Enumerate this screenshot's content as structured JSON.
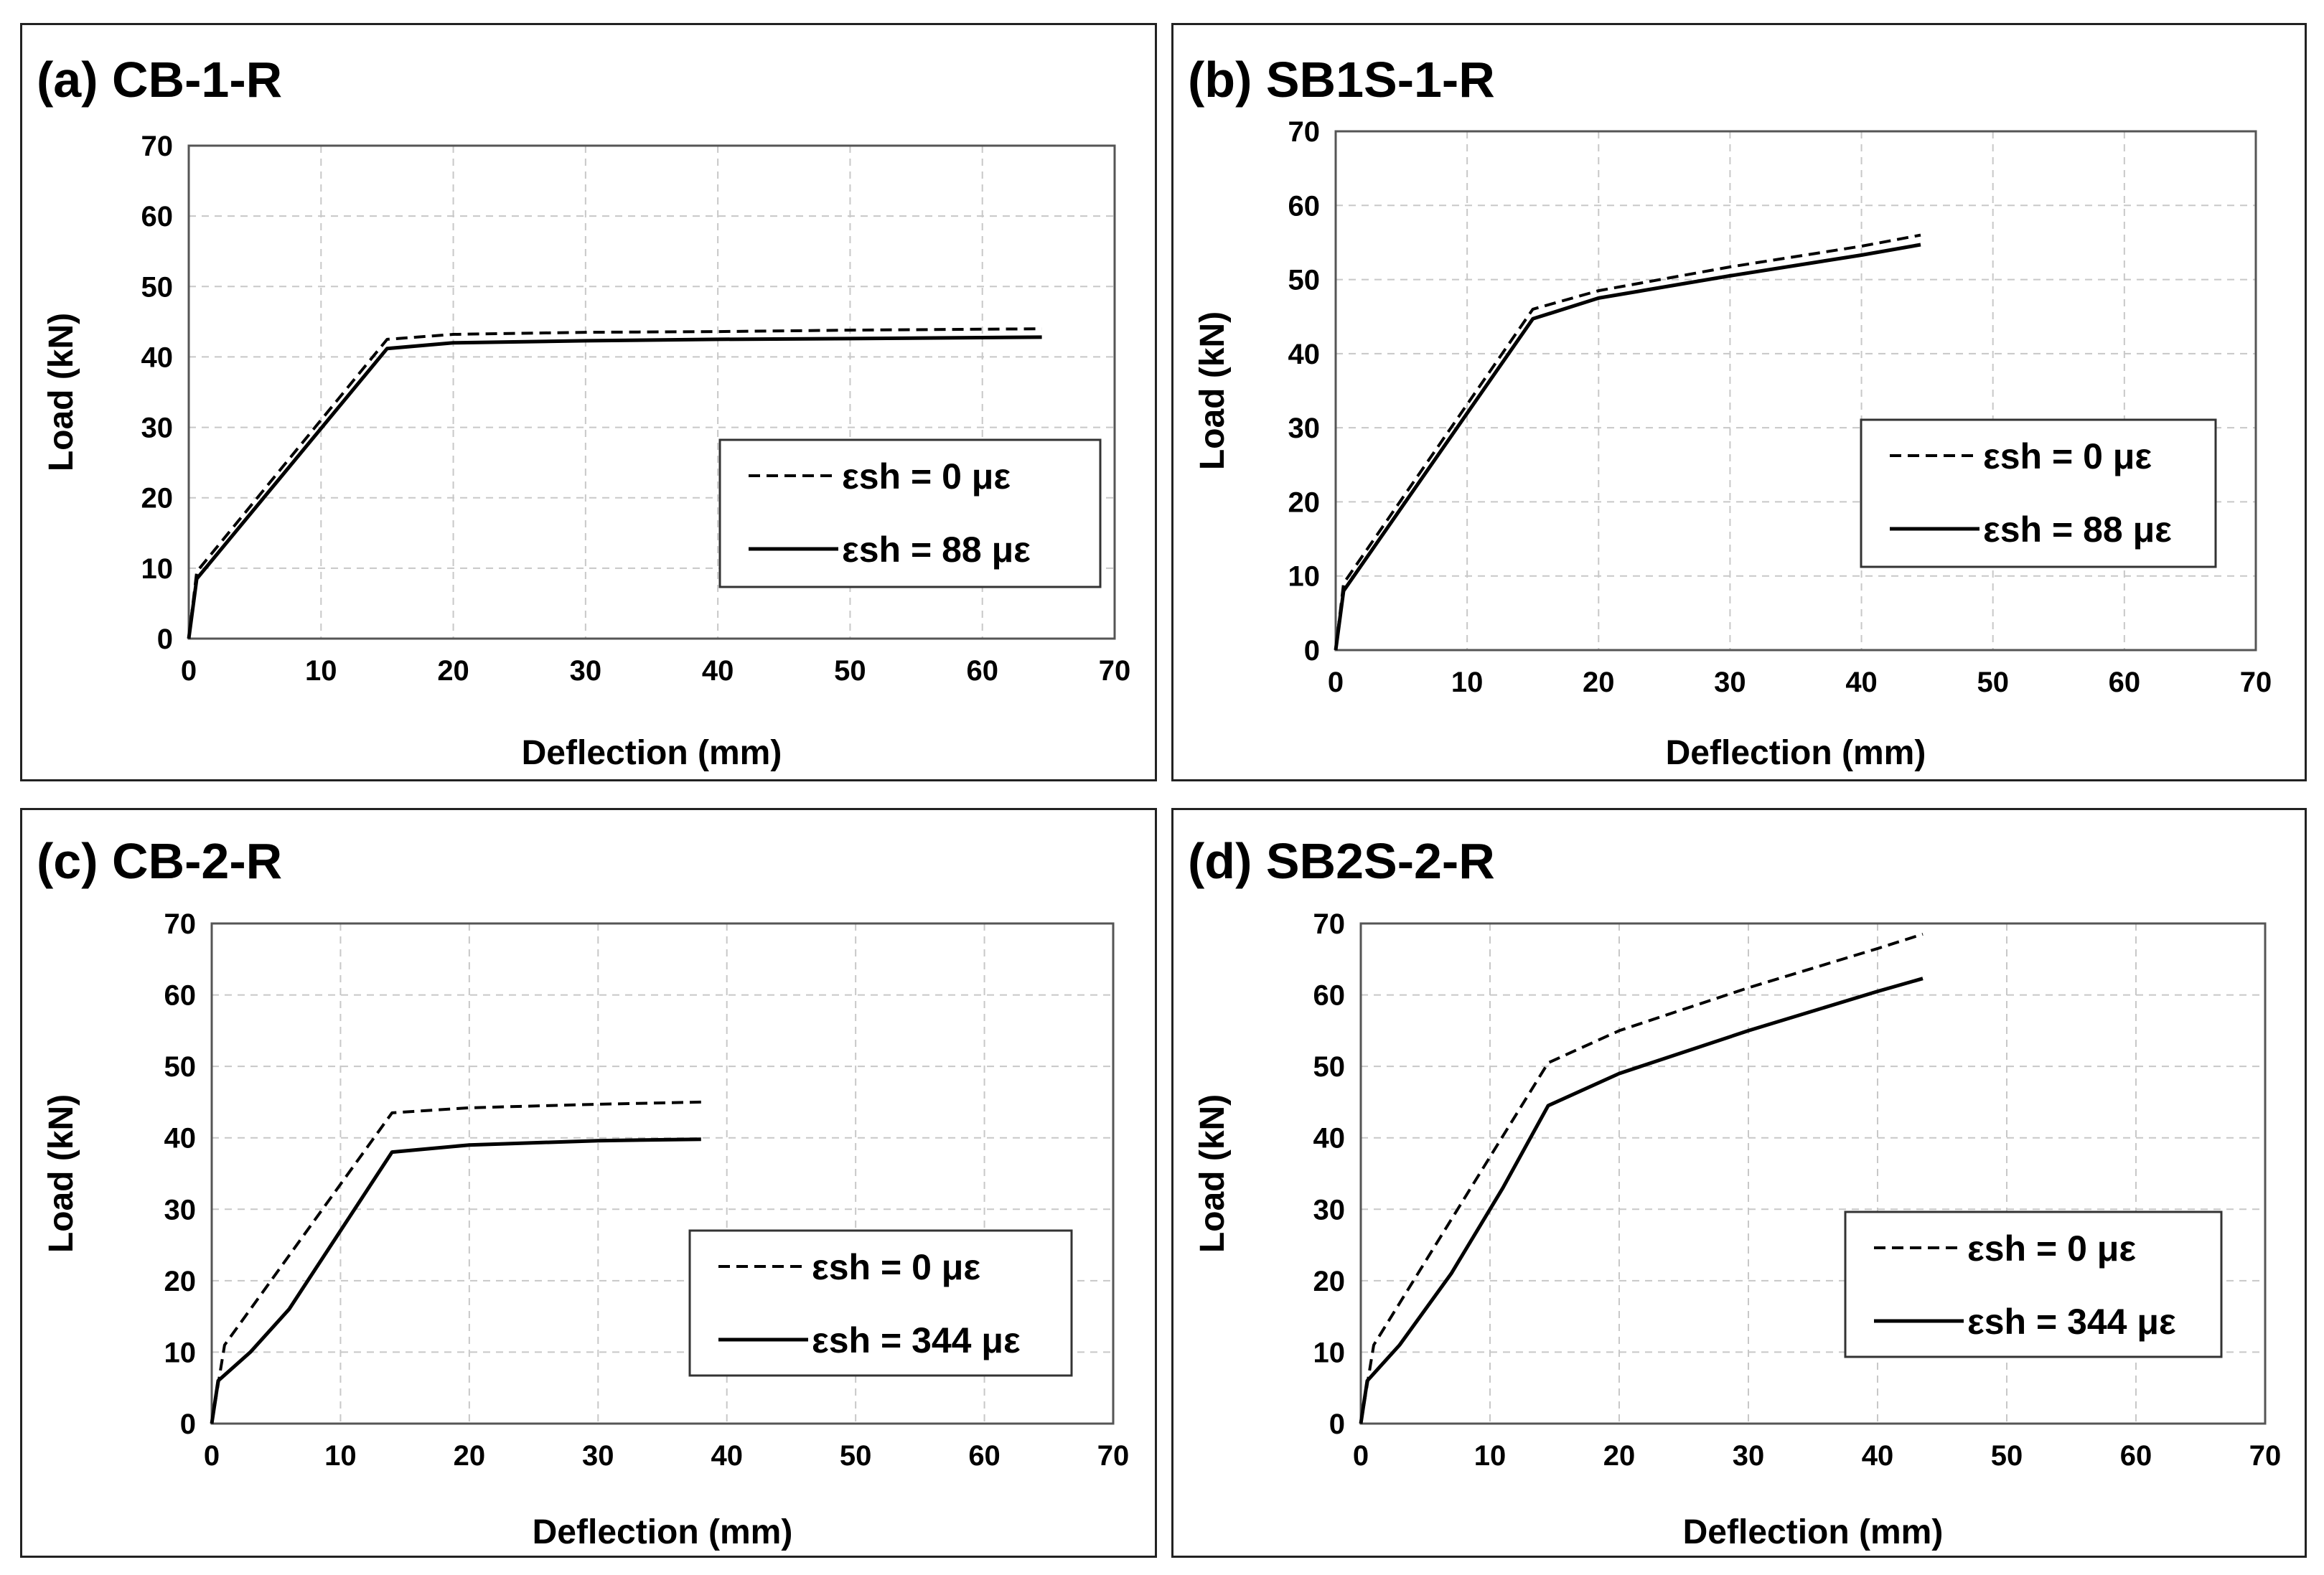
{
  "chart_data": [
    {
      "type": "line",
      "title": "(a) CB-1-R",
      "xlabel": "Deflection (mm)",
      "ylabel": "Load (kN)",
      "xlim": [
        0,
        70
      ],
      "ylim": [
        0,
        70
      ],
      "xticks": [
        0,
        10,
        20,
        30,
        40,
        50,
        60,
        70
      ],
      "yticks": [
        0,
        10,
        20,
        30,
        40,
        50,
        60,
        70
      ],
      "grid": true,
      "legend_position": "lower-right",
      "series": [
        {
          "name": "εsh = 0 με",
          "style": "dashed",
          "x": [
            0,
            0.6,
            15,
            20,
            30,
            40,
            50,
            64.5
          ],
          "y": [
            0,
            9.5,
            42.5,
            43.2,
            43.5,
            43.6,
            43.8,
            44
          ]
        },
        {
          "name": "εsh = 88 με",
          "style": "solid",
          "x": [
            0,
            0.6,
            15,
            20,
            30,
            40,
            50,
            64.5
          ],
          "y": [
            0,
            8.5,
            41.2,
            42,
            42.3,
            42.5,
            42.6,
            42.8
          ]
        }
      ]
    },
    {
      "type": "line",
      "title": "(b) SB1S-1-R",
      "xlabel": "Deflection (mm)",
      "ylabel": "Load (kN)",
      "xlim": [
        0,
        70
      ],
      "ylim": [
        0,
        70
      ],
      "xticks": [
        0,
        10,
        20,
        30,
        40,
        50,
        60,
        70
      ],
      "yticks": [
        0,
        10,
        20,
        30,
        40,
        50,
        60,
        70
      ],
      "grid": true,
      "legend_position": "lower-right",
      "series": [
        {
          "name": "εsh = 0 με",
          "style": "dashed",
          "x": [
            0,
            0.6,
            15,
            20,
            30,
            40,
            44.5
          ],
          "y": [
            0,
            9,
            46,
            48.5,
            51.7,
            54.5,
            56
          ]
        },
        {
          "name": "εsh = 88 με",
          "style": "solid",
          "x": [
            0,
            0.6,
            15,
            20,
            30,
            40,
            44.5
          ],
          "y": [
            0,
            8,
            44.7,
            47.5,
            50.5,
            53.3,
            54.7
          ]
        }
      ]
    },
    {
      "type": "line",
      "title": "(c) CB-2-R",
      "xlabel": "Deflection (mm)",
      "ylabel": "Load (kN)",
      "xlim": [
        0,
        70
      ],
      "ylim": [
        0,
        70
      ],
      "xticks": [
        0,
        10,
        20,
        30,
        40,
        50,
        60,
        70
      ],
      "yticks": [
        0,
        10,
        20,
        30,
        40,
        50,
        60,
        70
      ],
      "grid": true,
      "legend_position": "lower-right",
      "series": [
        {
          "name": "εsh = 0 με",
          "style": "dashed",
          "x": [
            0,
            1,
            14,
            20,
            30,
            38
          ],
          "y": [
            0,
            11,
            43.5,
            44.2,
            44.7,
            45
          ]
        },
        {
          "name": "εsh = 344 με",
          "style": "solid",
          "x": [
            0,
            0.5,
            3,
            6,
            10,
            14,
            20,
            30,
            38
          ],
          "y": [
            0,
            6,
            10,
            16,
            27,
            38,
            39,
            39.6,
            39.8
          ]
        }
      ]
    },
    {
      "type": "line",
      "title": "(d) SB2S-2-R",
      "xlabel": "Deflection (mm)",
      "ylabel": "Load (kN)",
      "xlim": [
        0,
        70
      ],
      "ylim": [
        0,
        70
      ],
      "xticks": [
        0,
        10,
        20,
        30,
        40,
        50,
        60,
        70
      ],
      "yticks": [
        0,
        10,
        20,
        30,
        40,
        50,
        60,
        70
      ],
      "grid": true,
      "legend_position": "lower-right",
      "series": [
        {
          "name": "εsh = 0 με",
          "style": "dashed",
          "x": [
            0,
            1,
            14.5,
            20,
            30,
            40,
            43.5
          ],
          "y": [
            0,
            11,
            50.5,
            55,
            61,
            66.5,
            68.5
          ]
        },
        {
          "name": "εsh = 344 με",
          "style": "solid",
          "x": [
            0,
            0.5,
            3,
            7,
            11,
            14.5,
            20,
            30,
            40,
            43.5
          ],
          "y": [
            0,
            6,
            11,
            21,
            33,
            44.5,
            49,
            55,
            60.5,
            62.3
          ]
        }
      ]
    }
  ]
}
